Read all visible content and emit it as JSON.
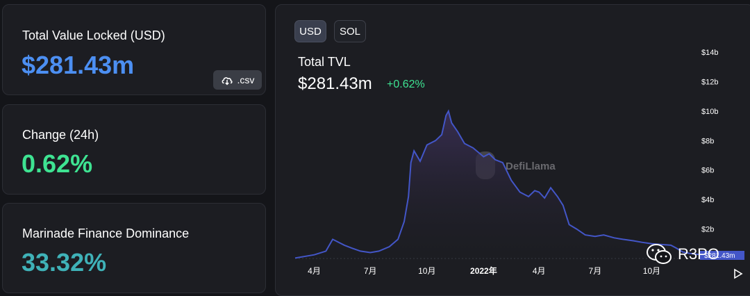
{
  "cards": {
    "tvl": {
      "label": "Total Value Locked (USD)",
      "value": "$281.43m",
      "csv_label": ".csv"
    },
    "change": {
      "label": "Change (24h)",
      "value": "0.62%"
    },
    "dominance": {
      "label": "Marinade Finance Dominance",
      "value": "33.32%"
    }
  },
  "toggles": {
    "usd": "USD",
    "sol": "SOL"
  },
  "chart_header": {
    "title": "Total TVL",
    "value": "$281.43m",
    "change": "+0.62%"
  },
  "watermark": {
    "chart_logo_text": "DefiLlama",
    "corner_text": "R3PO"
  },
  "colors": {
    "line": "#4356c8",
    "fill_top": "#3a2f55",
    "grid": "#3a3d45",
    "tvl_blue": "#4c8ff2",
    "change_green": "#3ee392",
    "dominance_teal": "#3fb2b8"
  },
  "chart_data": {
    "type": "area",
    "title": "Total TVL",
    "x_ticks": [
      "4月",
      "7月",
      "10月",
      "2022年",
      "4月",
      "7月",
      "10月"
    ],
    "y_ticks": [
      "$2b",
      "$4b",
      "$6b",
      "$8b",
      "$10b",
      "$12b",
      "$14b"
    ],
    "ylim": [
      0,
      14
    ],
    "y_unit": "billions USD",
    "last_value_label": "$281.43m",
    "series": [
      {
        "x": [
          "2021-03-01",
          "2021-04-01",
          "2021-04-20",
          "2021-05-01",
          "2021-05-20",
          "2021-06-01",
          "2021-06-15",
          "2021-07-01",
          "2021-07-15",
          "2021-08-01",
          "2021-08-15",
          "2021-08-25",
          "2021-09-01",
          "2021-09-05",
          "2021-09-10",
          "2021-09-20",
          "2021-10-01",
          "2021-10-15",
          "2021-10-25",
          "2021-11-01",
          "2021-11-05",
          "2021-11-10",
          "2021-11-20",
          "2021-12-01",
          "2021-12-15",
          "2022-01-01",
          "2022-01-10",
          "2022-01-20",
          "2022-02-01",
          "2022-02-15",
          "2022-03-01",
          "2022-03-15",
          "2022-03-25",
          "2022-04-01",
          "2022-04-10",
          "2022-04-20",
          "2022-05-01",
          "2022-05-10",
          "2022-05-20",
          "2022-06-01",
          "2022-06-15",
          "2022-07-01",
          "2022-07-15",
          "2022-08-01",
          "2022-08-15",
          "2022-09-01",
          "2022-09-15",
          "2022-10-01",
          "2022-10-15",
          "2022-11-01",
          "2022-11-10",
          "2022-11-20",
          "2022-12-01",
          "2022-12-15"
        ],
        "values": [
          0.03,
          0.25,
          0.5,
          1.3,
          0.9,
          0.7,
          0.5,
          0.4,
          0.5,
          0.8,
          1.3,
          2.5,
          4.2,
          6.5,
          7.3,
          6.6,
          7.7,
          8.0,
          8.4,
          9.7,
          10.0,
          9.2,
          8.6,
          7.8,
          7.5,
          6.9,
          7.1,
          6.7,
          6.5,
          5.3,
          4.5,
          4.2,
          4.6,
          4.5,
          4.1,
          4.8,
          4.2,
          3.6,
          2.3,
          2.0,
          1.6,
          1.5,
          1.6,
          1.4,
          1.3,
          1.2,
          1.1,
          1.0,
          0.95,
          0.9,
          0.7,
          0.45,
          0.35,
          0.28
        ]
      }
    ]
  }
}
